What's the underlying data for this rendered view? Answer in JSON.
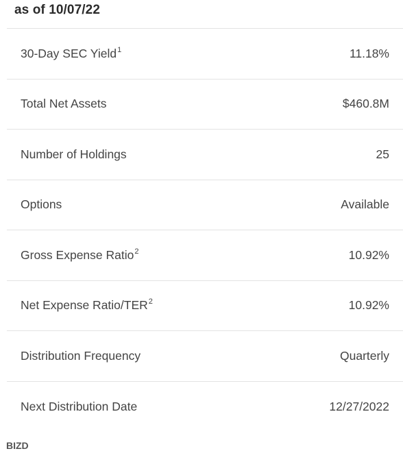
{
  "header": {
    "as_of": "as of 10/07/22"
  },
  "rows": [
    {
      "label": "30-Day SEC Yield",
      "sup": "1",
      "value": "11.18%"
    },
    {
      "label": "Total Net Assets",
      "sup": "",
      "value": "$460.8M"
    },
    {
      "label": "Number of Holdings",
      "sup": "",
      "value": "25"
    },
    {
      "label": "Options",
      "sup": "",
      "value": "Available"
    },
    {
      "label": "Gross Expense Ratio",
      "sup": "2",
      "value": "10.92%"
    },
    {
      "label": "Net Expense Ratio/TER",
      "sup": "2",
      "value": "10.92%"
    },
    {
      "label": "Distribution Frequency",
      "sup": "",
      "value": "Quarterly"
    },
    {
      "label": "Next Distribution Date",
      "sup": "",
      "value": "12/27/2022"
    }
  ],
  "footer": {
    "ticker": "BIZD"
  }
}
